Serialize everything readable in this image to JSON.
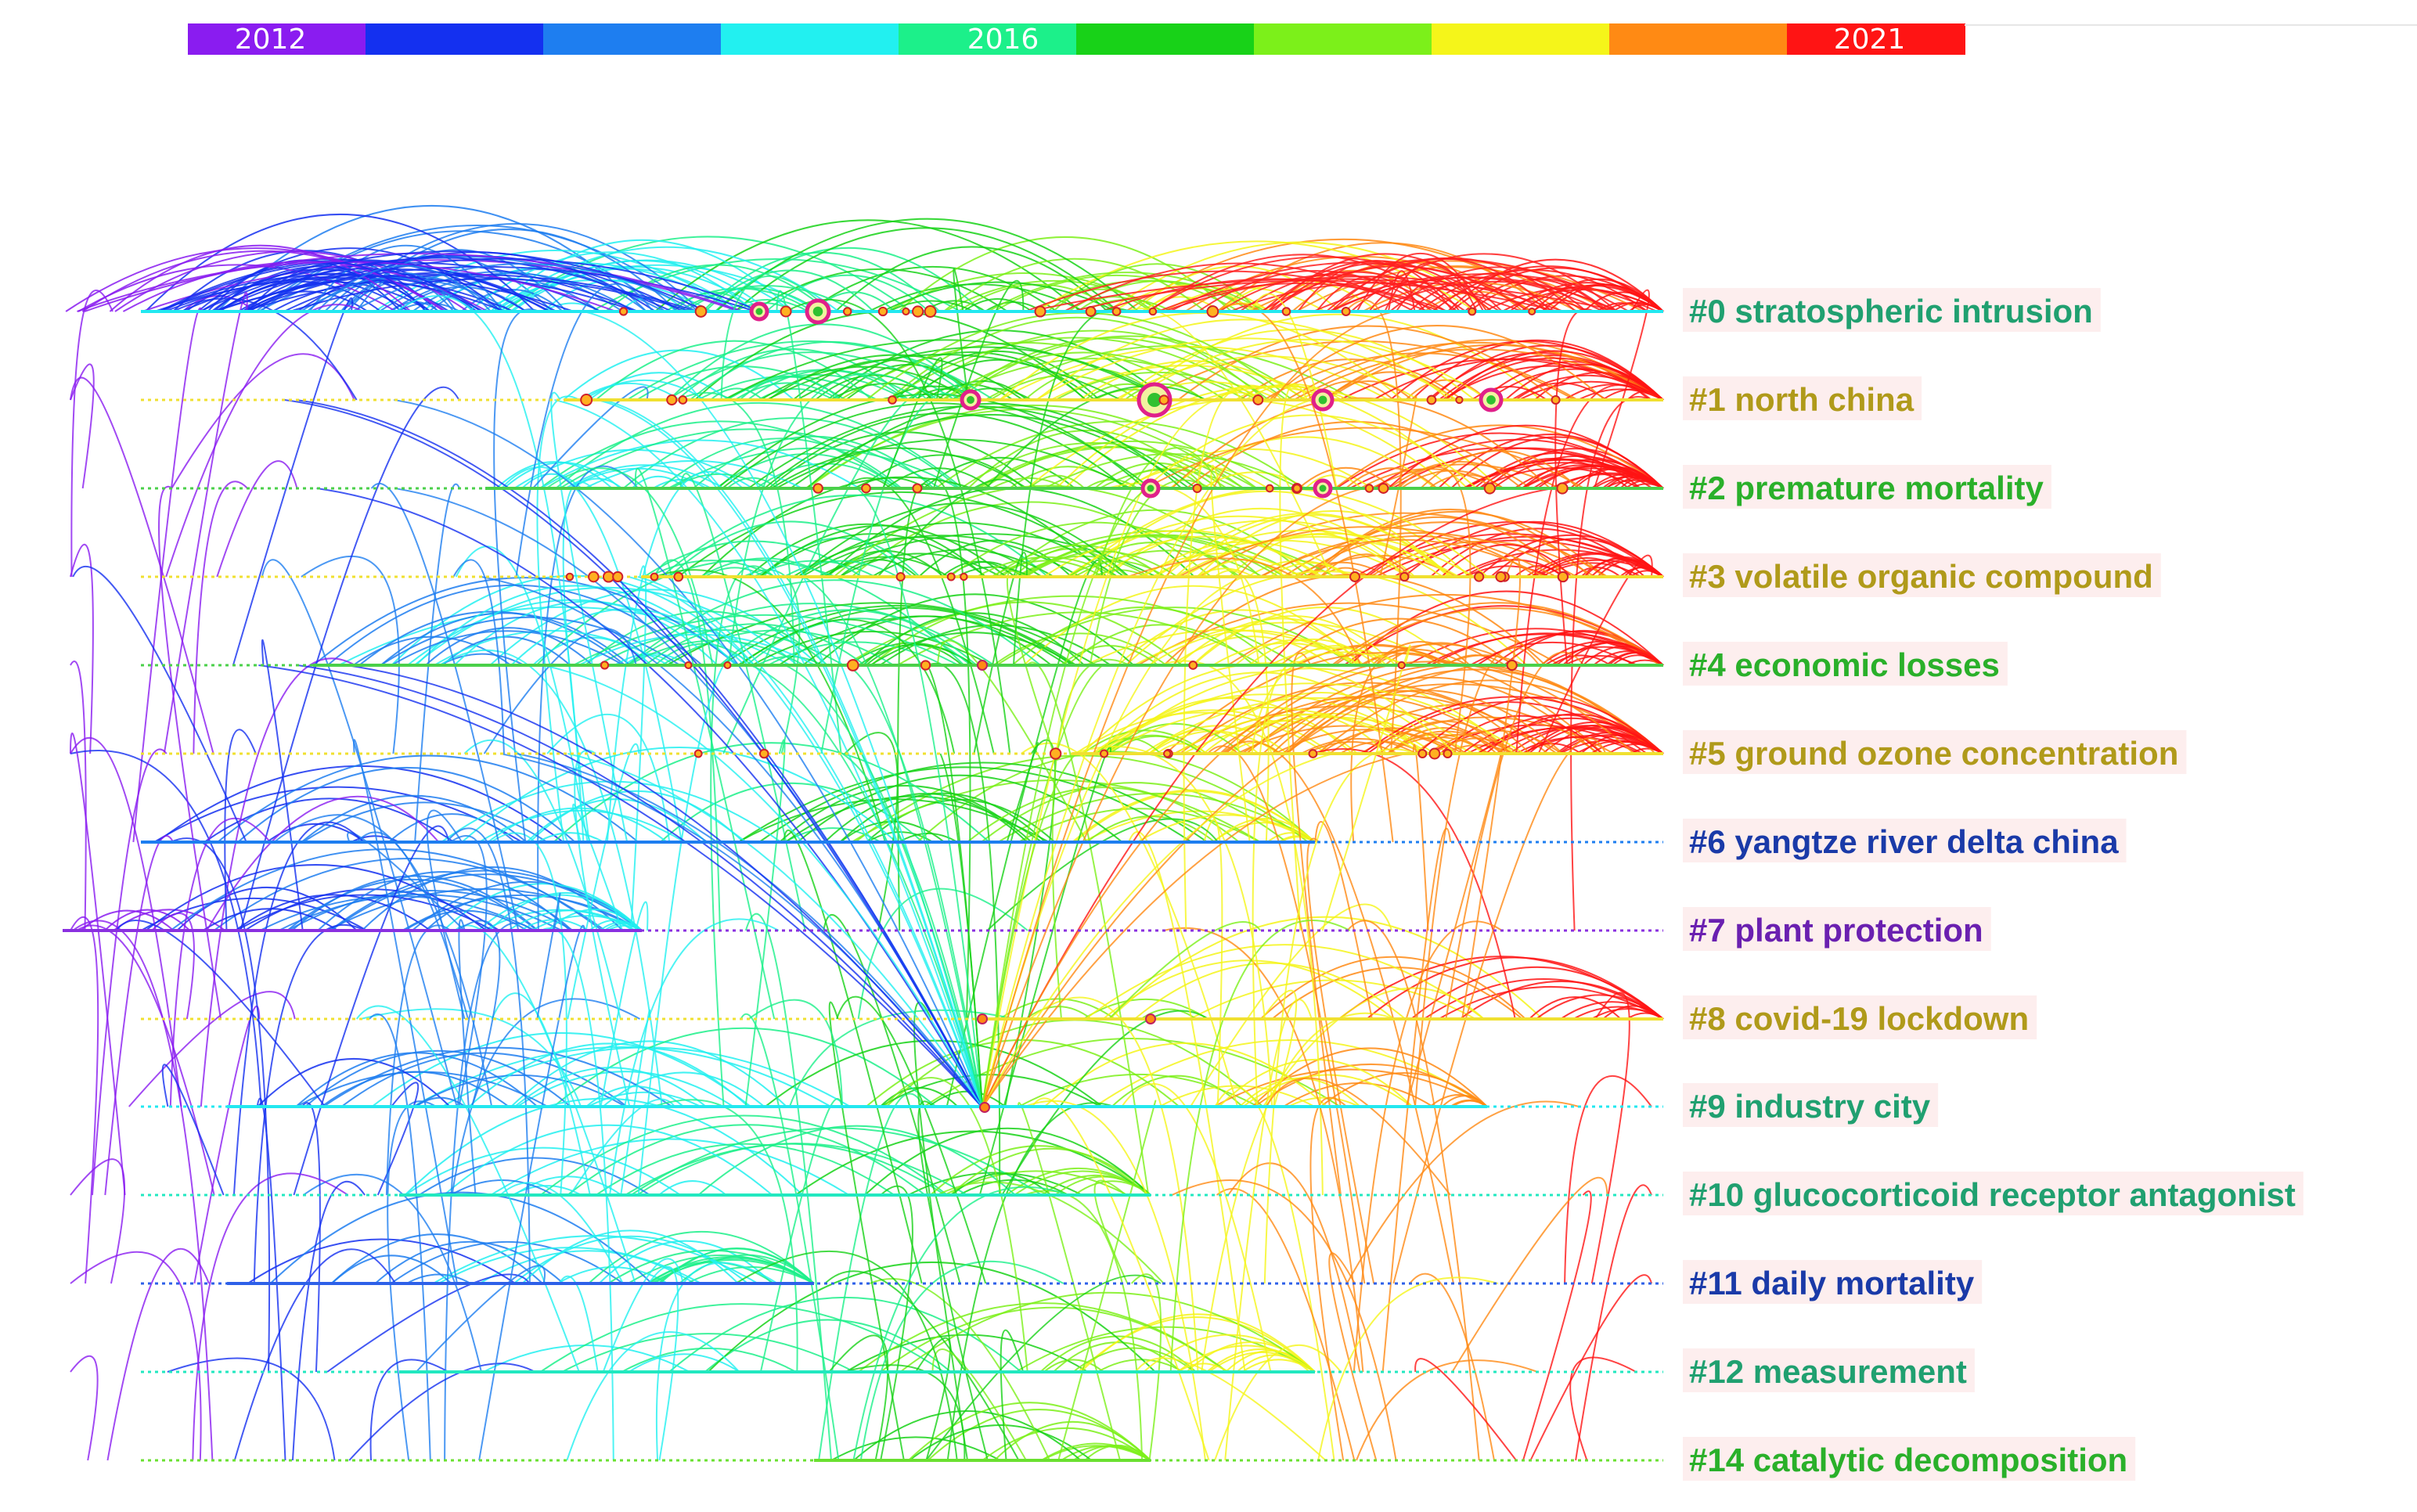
{
  "timeline": {
    "years_shown": [
      "2012",
      "2016",
      "2021"
    ],
    "color_scale": [
      "#8a1cf0",
      "#1430f0",
      "#1e7ef0",
      "#22f0f0",
      "#1cf08a",
      "#18d218",
      "#7cf01a",
      "#f5f51a",
      "#ff8a14",
      "#ff1414"
    ]
  },
  "clusters": [
    {
      "label": "#0 stratospheric intrusion",
      "color": "#20a070",
      "line": "#22e8f0"
    },
    {
      "label": "#1 north china",
      "color": "#b09a1a",
      "line": "#f0e030"
    },
    {
      "label": "#2 premature mortality",
      "color": "#2ab02a",
      "line": "#4ad04a"
    },
    {
      "label": "#3 volatile organic compound",
      "color": "#b09a1a",
      "line": "#f0e030"
    },
    {
      "label": "#4 economic losses",
      "color": "#2ab02a",
      "line": "#4ad04a"
    },
    {
      "label": "#5 ground ozone concentration",
      "color": "#b09a1a",
      "line": "#f0e030"
    },
    {
      "label": "#6 yangtze river delta china",
      "color": "#1a3aa8",
      "line": "#1e7ef0"
    },
    {
      "label": "#7 plant protection",
      "color": "#6a20b0",
      "line": "#8a30e0"
    },
    {
      "label": "#8 covid-19 lockdown",
      "color": "#b09a1a",
      "line": "#f0e030"
    },
    {
      "label": "#9 industry city",
      "color": "#20a070",
      "line": "#22e8f0"
    },
    {
      "label": "#10 glucocorticoid receptor antagonist",
      "color": "#20a070",
      "line": "#22e8c0"
    },
    {
      "label": "#11 daily mortality",
      "color": "#1a3aa8",
      "line": "#2e60e8"
    },
    {
      "label": "#12 measurement",
      "color": "#20a070",
      "line": "#22e8c0"
    },
    {
      "label": "#14 catalytic decomposition",
      "color": "#2ab02a",
      "line": "#6ae030"
    }
  ]
}
